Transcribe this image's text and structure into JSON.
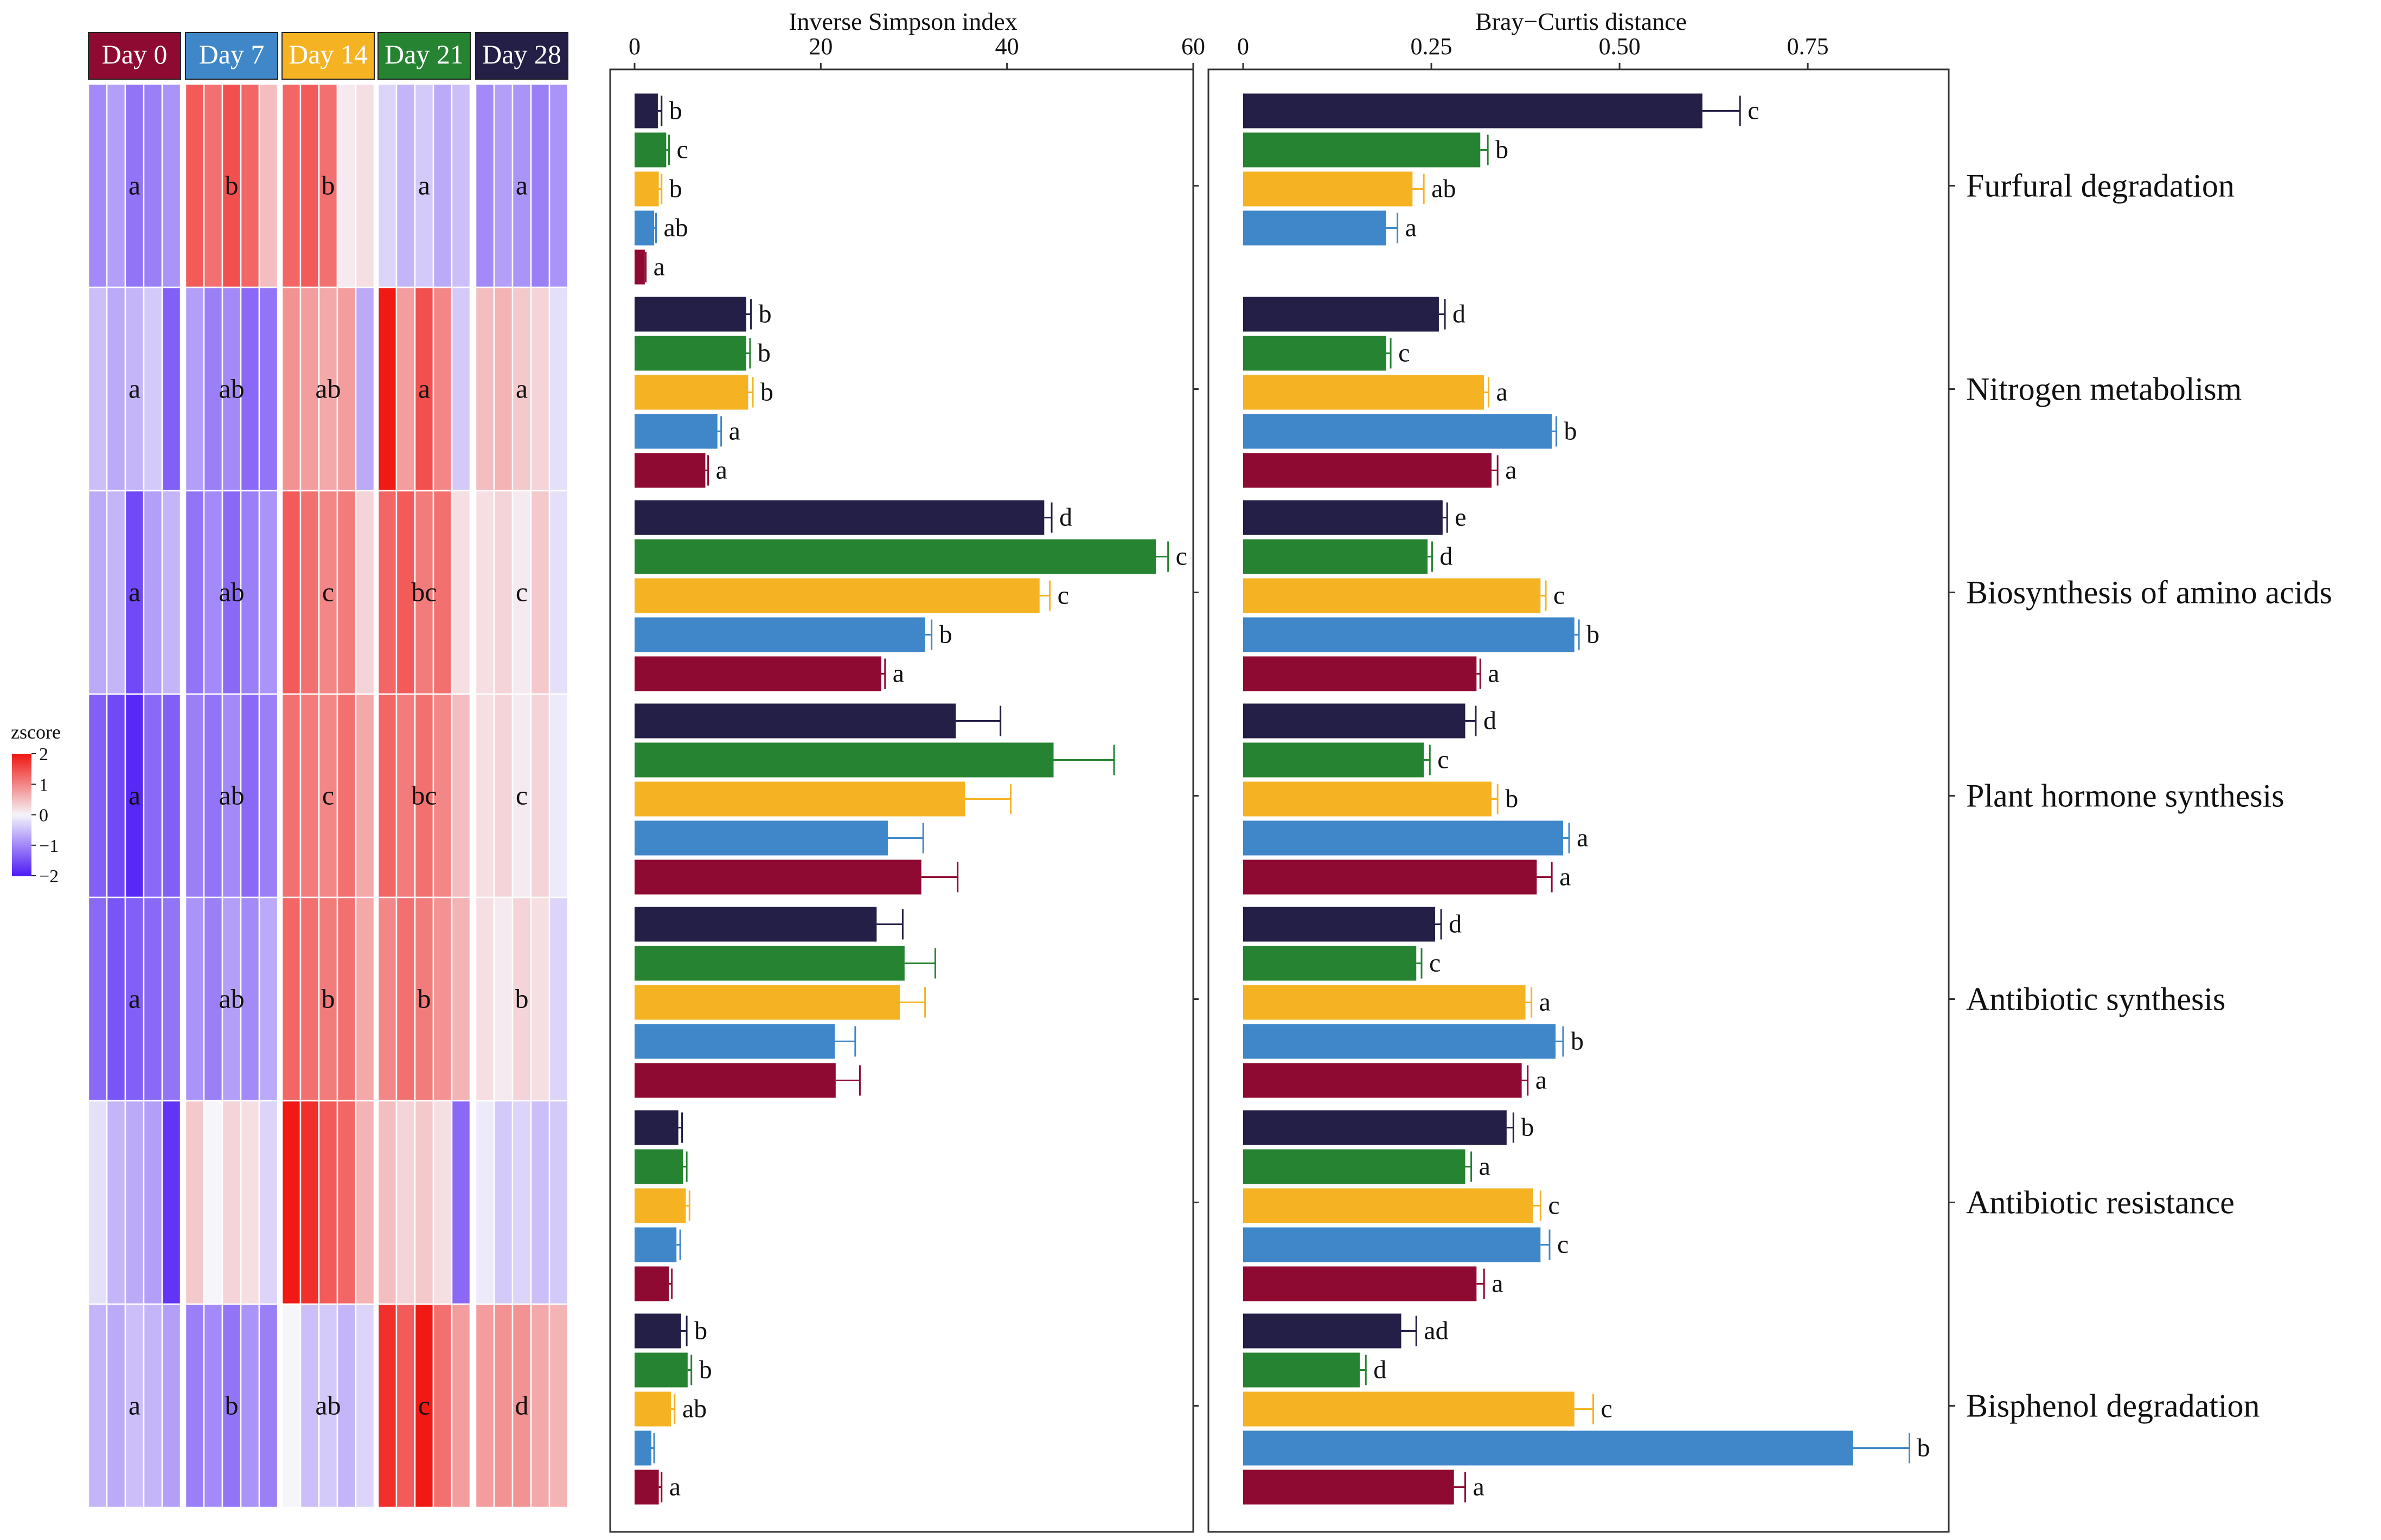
{
  "colors": {
    "day0": "#8f0a32",
    "day7": "#3f87c8",
    "day14": "#f5b324",
    "day21": "#268331",
    "day28": "#231f47"
  },
  "days": [
    "Day 0",
    "Day 7",
    "Day 14",
    "Day 21",
    "Day 28"
  ],
  "pathways": [
    "Furfural degradation",
    "Nitrogen metabolism",
    "Biosynthesis of amino acids",
    "Plant hormone synthesis",
    "Antibiotic synthesis",
    "Antibiotic resistance",
    "Bisphenol degradation"
  ],
  "legend": {
    "title": "zscore",
    "ticks": [
      "2",
      "1",
      "0",
      "−1",
      "−2"
    ],
    "values": [
      2,
      1,
      0,
      -1,
      -2
    ]
  },
  "heatmap": {
    "letters": [
      [
        "a",
        "b",
        "b",
        "a",
        "a"
      ],
      [
        "a",
        "ab",
        "ab",
        "a",
        "a"
      ],
      [
        "a",
        "ab",
        "c",
        "bc",
        "c"
      ],
      [
        "a",
        "ab",
        "c",
        "bc",
        "c"
      ],
      [
        "a",
        "ab",
        "b",
        "b",
        "b"
      ],
      [
        "",
        "",
        "",
        "",
        ""
      ],
      [
        "a",
        "b",
        "ab",
        "c",
        "d"
      ]
    ],
    "zscores": [
      [
        [
          -1.0,
          -0.8,
          -1.2,
          -1.1,
          -0.9
        ],
        [
          1.4,
          1.2,
          1.5,
          1.3,
          0.5
        ],
        [
          1.3,
          1.4,
          1.2,
          0.1,
          0.2
        ],
        [
          -0.3,
          -0.6,
          -0.4,
          -0.7,
          -0.5
        ],
        [
          -1.0,
          -0.8,
          -0.9,
          -1.1,
          -0.9
        ]
      ],
      [
        [
          -0.5,
          -0.7,
          -0.6,
          -0.4,
          -1.4
        ],
        [
          -0.8,
          -1.1,
          -1.0,
          -1.3,
          -1.2
        ],
        [
          0.9,
          0.8,
          0.7,
          0.8,
          -0.7
        ],
        [
          2.0,
          0.8,
          1.5,
          1.0,
          -0.4
        ],
        [
          0.5,
          0.6,
          0.4,
          0.3,
          -0.2
        ]
      ],
      [
        [
          -0.7,
          -0.6,
          -1.6,
          -0.8,
          -0.6
        ],
        [
          -1.2,
          -1.0,
          -1.3,
          -1.1,
          -0.9
        ],
        [
          1.4,
          1.2,
          1.0,
          1.1,
          0.3
        ],
        [
          1.3,
          1.4,
          1.1,
          1.2,
          0.2
        ],
        [
          0.2,
          0.3,
          0.1,
          0.4,
          -0.2
        ]
      ],
      [
        [
          -1.4,
          -1.6,
          -1.9,
          -1.3,
          -1.4
        ],
        [
          -1.1,
          -1.2,
          -1.0,
          -1.3,
          -1.1
        ],
        [
          1.2,
          1.1,
          1.0,
          1.2,
          0.7
        ],
        [
          1.3,
          1.1,
          1.2,
          1.0,
          0.5
        ],
        [
          0.2,
          0.3,
          0.1,
          0.3,
          -0.1
        ]
      ],
      [
        [
          -1.3,
          -1.5,
          -1.4,
          -1.3,
          -1.2
        ],
        [
          -0.9,
          -1.1,
          -0.8,
          -1.0,
          -0.7
        ],
        [
          1.3,
          1.2,
          1.1,
          1.2,
          0.7
        ],
        [
          1.0,
          1.2,
          1.1,
          0.9,
          0.6
        ],
        [
          0.2,
          0.1,
          0.3,
          0.2,
          -0.3
        ]
      ],
      [
        [
          -0.2,
          -0.6,
          -0.7,
          -0.8,
          -1.8
        ],
        [
          0.4,
          0.0,
          0.3,
          0.2,
          -0.3
        ],
        [
          2.0,
          1.8,
          1.4,
          1.3,
          0.6
        ],
        [
          0.5,
          0.3,
          0.4,
          0.2,
          -1.3
        ],
        [
          -0.1,
          -0.4,
          -0.3,
          -0.5,
          -0.4
        ]
      ],
      [
        [
          -0.6,
          -0.7,
          -0.5,
          -0.6,
          -0.8
        ],
        [
          -1.1,
          -1.0,
          -1.2,
          -0.9,
          -1.1
        ],
        [
          0.0,
          -0.5,
          -0.4,
          -0.6,
          -0.3
        ],
        [
          1.8,
          1.4,
          2.0,
          1.2,
          0.8
        ],
        [
          0.8,
          0.9,
          0.9,
          0.7,
          0.6
        ]
      ]
    ]
  },
  "chart_data": [
    {
      "type": "bar",
      "orientation": "horizontal",
      "title": "Inverse Simpson index",
      "xlim": [
        0,
        60
      ],
      "ticks": [
        0,
        20,
        40,
        60
      ],
      "tick_labels": [
        "0",
        "20",
        "40",
        "60"
      ],
      "categories": [
        "Furfural degradation",
        "Nitrogen metabolism",
        "Biosynthesis of amino acids",
        "Plant hormone synthesis",
        "Antibiotic synthesis",
        "Antibiotic resistance",
        "Bisphenol degradation"
      ],
      "series": [
        {
          "name": "Day 28",
          "color": "day28",
          "values": [
            2.5,
            12,
            44,
            34.5,
            26,
            4.7,
            5
          ],
          "errors": [
            0.4,
            0.5,
            0.8,
            4.8,
            2.8,
            0.4,
            0.6
          ],
          "letters": [
            "b",
            "b",
            "d",
            "",
            "",
            "",
            "b"
          ]
        },
        {
          "name": "Day 21",
          "color": "day21",
          "values": [
            3.4,
            12,
            56,
            45,
            29,
            5.2,
            5.7
          ],
          "errors": [
            0.3,
            0.4,
            1.3,
            6.5,
            3.3,
            0.4,
            0.4
          ],
          "letters": [
            "c",
            "b",
            "c",
            "",
            "",
            "",
            "b"
          ]
        },
        {
          "name": "Day 14",
          "color": "day14",
          "values": [
            2.6,
            12.2,
            43.5,
            35.5,
            28.5,
            5.5,
            3.9
          ],
          "errors": [
            0.3,
            0.5,
            1.1,
            4.9,
            2.7,
            0.4,
            0.4
          ],
          "letters": [
            "b",
            "b",
            "c",
            "",
            "",
            "",
            "ab"
          ]
        },
        {
          "name": "Day 7",
          "color": "day7",
          "values": [
            2.1,
            8.9,
            31.2,
            27.2,
            21.5,
            4.5,
            1.8
          ],
          "errors": [
            0.2,
            0.4,
            0.7,
            3.8,
            2.2,
            0.4,
            0.3
          ],
          "letters": [
            "ab",
            "a",
            "b",
            "",
            "",
            "",
            ""
          ]
        },
        {
          "name": "Day 0",
          "color": "day0",
          "values": [
            1.1,
            7.6,
            26.5,
            30.8,
            21.6,
            3.7,
            2.6
          ],
          "errors": [
            0.1,
            0.3,
            0.4,
            3.9,
            2.6,
            0.3,
            0.3
          ],
          "letters": [
            "a",
            "a",
            "a",
            "",
            "",
            "",
            "a"
          ]
        }
      ]
    },
    {
      "type": "bar",
      "orientation": "horizontal",
      "title": "Bray−Curtis distance",
      "xlim": [
        0,
        0.93
      ],
      "ticks": [
        0,
        0.25,
        0.5,
        0.75
      ],
      "tick_labels": [
        "0",
        "0.25",
        "0.50",
        "0.75"
      ],
      "categories": [
        "Furfural degradation",
        "Nitrogen metabolism",
        "Biosynthesis of amino acids",
        "Plant hormone synthesis",
        "Antibiotic synthesis",
        "Antibiotic resistance",
        "Bisphenol degradation"
      ],
      "series": [
        {
          "name": "Day 28",
          "color": "day28",
          "values": [
            0.61,
            0.26,
            0.265,
            0.295,
            0.255,
            0.35,
            0.21
          ],
          "errors": [
            0.05,
            0.008,
            0.006,
            0.014,
            0.008,
            0.009,
            0.02
          ],
          "letters": [
            "c",
            "d",
            "e",
            "d",
            "d",
            "b",
            "ad"
          ]
        },
        {
          "name": "Day 21",
          "color": "day21",
          "values": [
            0.315,
            0.19,
            0.245,
            0.24,
            0.23,
            0.295,
            0.155
          ],
          "errors": [
            0.01,
            0.006,
            0.006,
            0.008,
            0.007,
            0.008,
            0.008
          ],
          "letters": [
            "b",
            "c",
            "d",
            "c",
            "c",
            "a",
            "d"
          ]
        },
        {
          "name": "Day 14",
          "color": "day14",
          "values": [
            0.225,
            0.32,
            0.395,
            0.33,
            0.375,
            0.385,
            0.44
          ],
          "errors": [
            0.015,
            0.006,
            0.007,
            0.008,
            0.008,
            0.01,
            0.025
          ],
          "letters": [
            "ab",
            "a",
            "c",
            "b",
            "a",
            "c",
            "c"
          ]
        },
        {
          "name": "Day 7",
          "color": "day7",
          "values": [
            0.19,
            0.41,
            0.44,
            0.425,
            0.415,
            0.395,
            0.81
          ],
          "errors": [
            0.015,
            0.006,
            0.006,
            0.008,
            0.01,
            0.012,
            0.075
          ],
          "letters": [
            "a",
            "b",
            "b",
            "a",
            "b",
            "c",
            "b"
          ]
        },
        {
          "name": "Day 0",
          "color": "day0",
          "values": [
            0,
            0.33,
            0.31,
            0.39,
            0.37,
            0.31,
            0.28
          ],
          "errors": [
            0,
            0.008,
            0.005,
            0.02,
            0.008,
            0.01,
            0.015
          ],
          "letters": [
            "",
            "a",
            "a",
            "a",
            "a",
            "a",
            "a"
          ]
        }
      ]
    }
  ]
}
